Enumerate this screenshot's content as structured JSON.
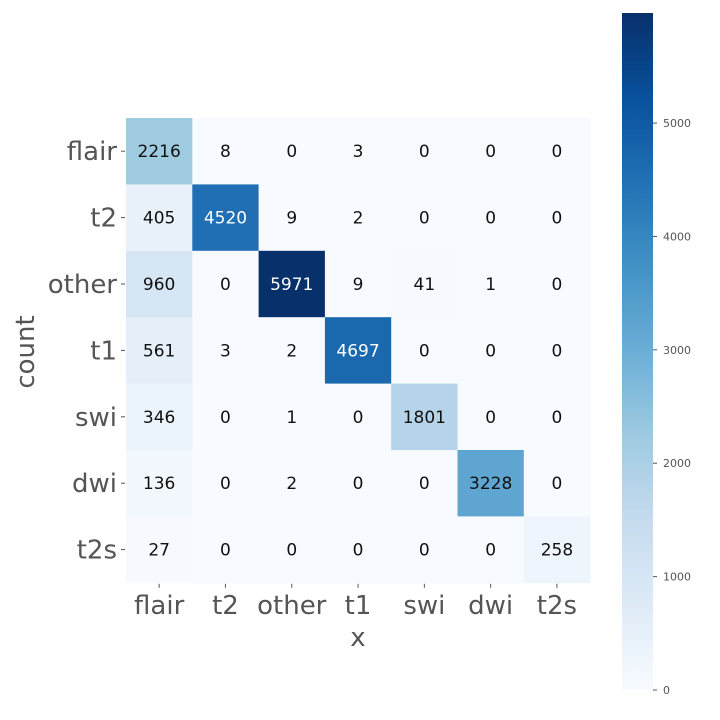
{
  "chart_data": {
    "type": "heatmap",
    "xlabel": "x",
    "ylabel": "count",
    "x_categories": [
      "flair",
      "t2",
      "other",
      "t1",
      "swi",
      "dwi",
      "t2s"
    ],
    "y_categories": [
      "flair",
      "t2",
      "other",
      "t1",
      "swi",
      "dwi",
      "t2s"
    ],
    "values": [
      [
        2216,
        8,
        0,
        3,
        0,
        0,
        0
      ],
      [
        405,
        4520,
        9,
        2,
        0,
        0,
        0
      ],
      [
        960,
        0,
        5971,
        9,
        41,
        1,
        0
      ],
      [
        561,
        3,
        2,
        4697,
        0,
        0,
        0
      ],
      [
        346,
        0,
        1,
        0,
        1801,
        0,
        0
      ],
      [
        136,
        0,
        2,
        0,
        0,
        3228,
        0
      ],
      [
        27,
        0,
        0,
        0,
        0,
        0,
        258
      ]
    ],
    "colormap": "Blues",
    "colorbar": {
      "range": [
        0,
        5971
      ],
      "ticks": [
        0,
        1000,
        2000,
        3000,
        4000,
        5000
      ]
    },
    "grid": false
  }
}
